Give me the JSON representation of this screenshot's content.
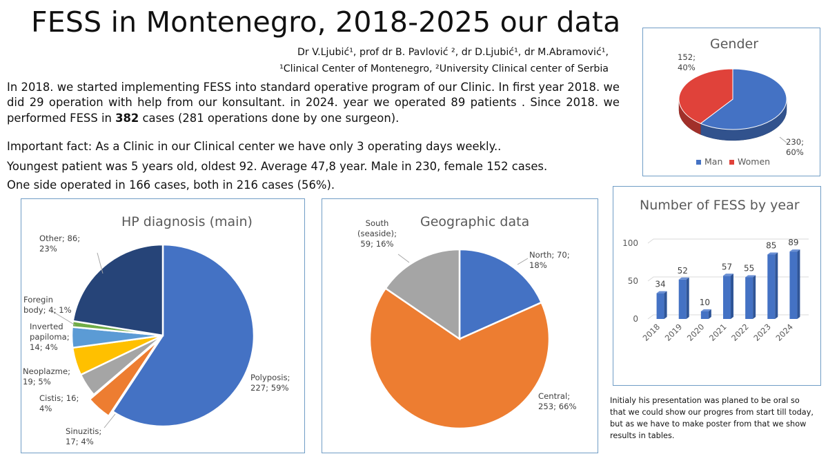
{
  "poster": {
    "title": "FESS in Montenegro, 2018-2025 our data",
    "authors_line1": "Dr V.Ljubić¹, prof dr B. Pavlović ², dr D.Ljubić¹, dr M.Abramović¹,",
    "authors_line2": "¹Clinical Center of Montenegro, ²University Clinical center of Serbia",
    "intro_before": "In 2018. we started implementing FESS into standard operative program of our Clinic.  In first year 2018. we did  29 operation with help from our konsultant. in 2024. year we operated 89 patients . Since 2018. we performed FESS in ",
    "intro_bold": "382",
    "intro_after": " cases (281 operations done by one surgeon).",
    "fact1": "Important fact: As a Clinic in our Clinical center we have only 3 operating days weekly..",
    "fact2": "Youngest patient was 5  years old, oldest 92. Average 47,8 year. Male in 230, female 152 cases.",
    "fact3": "One side operated in 166 cases, both in 216 cases (56%).",
    "note": "Initialy his presentation was planed to be oral so that we could show our progres from start till today, but as we have to make poster from that we show results in tables."
  },
  "chart_data": [
    {
      "type": "pie",
      "id": "gender",
      "title": "Gender",
      "three_d": true,
      "legend_position": "bottom",
      "slices": [
        {
          "name": "Man",
          "value": 230,
          "percent": 60,
          "color": "#4472c4",
          "label": "230;\n60%"
        },
        {
          "name": "Women",
          "value": 152,
          "percent": 40,
          "color": "#e0423a",
          "label": "152;\n40%"
        }
      ]
    },
    {
      "type": "pie",
      "id": "hp_diagnosis",
      "title": "HP diagnosis (main)",
      "slices": [
        {
          "name": "Polyposis",
          "value": 227,
          "percent": 59,
          "color": "#4472c4",
          "label": "Polyposis;\n227; 59%"
        },
        {
          "name": "Sinuzitis",
          "value": 17,
          "percent": 4,
          "color": "#ed7d31",
          "label": "Sinuzitis;\n17; 4%",
          "exploded": true
        },
        {
          "name": "Cistis",
          "value": 16,
          "percent": 4,
          "color": "#a5a5a5",
          "label": "Cistis; 16;\n4%"
        },
        {
          "name": "Neoplazme",
          "value": 19,
          "percent": 5,
          "color": "#ffc000",
          "label": "Neoplazme;\n19; 5%"
        },
        {
          "name": "Inverted papiloma",
          "value": 14,
          "percent": 4,
          "color": "#5b9bd5",
          "label": "Inverted\npapiloma;\n14; 4%"
        },
        {
          "name": "Foregin body",
          "value": 4,
          "percent": 1,
          "color": "#70ad47",
          "label": "Foregin\nbody; 4; 1%"
        },
        {
          "name": "Other",
          "value": 86,
          "percent": 23,
          "color": "#264478",
          "label": "Other; 86;\n23%"
        }
      ]
    },
    {
      "type": "pie",
      "id": "geographic",
      "title": "Geographic data",
      "slices": [
        {
          "name": "North",
          "value": 70,
          "percent": 18,
          "color": "#4472c4",
          "label": "North; 70;\n18%"
        },
        {
          "name": "Central",
          "value": 253,
          "percent": 66,
          "color": "#ed7d31",
          "label": "Central;\n253; 66%"
        },
        {
          "name": "South (seaside)",
          "value": 59,
          "percent": 16,
          "color": "#a5a5a5",
          "label": "South\n(seaside);\n59; 16%"
        }
      ]
    },
    {
      "type": "bar",
      "id": "fess_by_year",
      "title": "Number of FESS by year",
      "three_d": true,
      "categories": [
        "2018",
        "2019",
        "2020",
        "2021",
        "2022",
        "2023",
        "2024"
      ],
      "values": [
        34,
        52,
        10,
        57,
        55,
        85,
        89
      ],
      "yticks": [
        "0",
        "50",
        "100"
      ],
      "ylim": [
        0,
        100
      ],
      "grid": true,
      "color": "#4472c4"
    }
  ]
}
